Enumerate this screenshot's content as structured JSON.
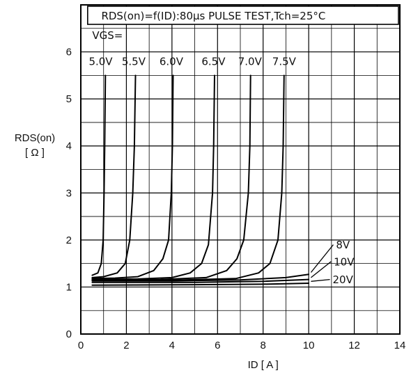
{
  "chart_data": {
    "type": "line",
    "title": "",
    "condition": "RDS(on)=f(ID):80μs PULSE TEST,Tch=25°C",
    "legend_prefix": "VGS=",
    "ylabel": "RDS(on)",
    "ylabel_unit": "[ Ω ]",
    "xlabel": "ID [ A ]",
    "xlim": [
      0,
      14
    ],
    "ylim": [
      0,
      7
    ],
    "xticks": [
      0,
      2,
      4,
      6,
      8,
      10,
      12,
      14
    ],
    "yticks": [
      0,
      1,
      2,
      3,
      4,
      5,
      6
    ],
    "grid": true,
    "series": [
      {
        "name": "5.0V",
        "points": [
          [
            0.5,
            1.25
          ],
          [
            0.75,
            1.3
          ],
          [
            0.9,
            1.5
          ],
          [
            0.98,
            2.0
          ],
          [
            1.02,
            3.0
          ],
          [
            1.05,
            4.0
          ],
          [
            1.08,
            5.5
          ]
        ]
      },
      {
        "name": "5.5V",
        "points": [
          [
            0.5,
            1.2
          ],
          [
            1.0,
            1.22
          ],
          [
            1.6,
            1.3
          ],
          [
            1.95,
            1.5
          ],
          [
            2.15,
            2.0
          ],
          [
            2.28,
            3.0
          ],
          [
            2.35,
            4.0
          ],
          [
            2.4,
            5.5
          ]
        ]
      },
      {
        "name": "6.0V",
        "points": [
          [
            0.5,
            1.18
          ],
          [
            1.5,
            1.19
          ],
          [
            2.5,
            1.22
          ],
          [
            3.2,
            1.35
          ],
          [
            3.6,
            1.6
          ],
          [
            3.85,
            2.0
          ],
          [
            3.97,
            3.0
          ],
          [
            4.02,
            4.0
          ],
          [
            4.05,
            5.5
          ]
        ]
      },
      {
        "name": "6.5V",
        "points": [
          [
            0.5,
            1.16
          ],
          [
            2.5,
            1.17
          ],
          [
            4.0,
            1.2
          ],
          [
            4.8,
            1.3
          ],
          [
            5.3,
            1.5
          ],
          [
            5.6,
            1.9
          ],
          [
            5.78,
            3.0
          ],
          [
            5.83,
            4.0
          ],
          [
            5.87,
            5.5
          ]
        ]
      },
      {
        "name": "7.0V",
        "points": [
          [
            0.5,
            1.15
          ],
          [
            3.5,
            1.16
          ],
          [
            5.5,
            1.2
          ],
          [
            6.4,
            1.35
          ],
          [
            6.85,
            1.6
          ],
          [
            7.15,
            2.0
          ],
          [
            7.35,
            3.0
          ],
          [
            7.42,
            4.0
          ],
          [
            7.45,
            5.5
          ]
        ]
      },
      {
        "name": "7.5V",
        "points": [
          [
            0.5,
            1.14
          ],
          [
            4.5,
            1.15
          ],
          [
            6.8,
            1.18
          ],
          [
            7.8,
            1.3
          ],
          [
            8.3,
            1.5
          ],
          [
            8.65,
            2.0
          ],
          [
            8.82,
            3.0
          ],
          [
            8.88,
            4.0
          ],
          [
            8.92,
            5.5
          ]
        ]
      },
      {
        "name": "8V",
        "points": [
          [
            0.5,
            1.13
          ],
          [
            4,
            1.13
          ],
          [
            7,
            1.15
          ],
          [
            9,
            1.2
          ],
          [
            10,
            1.27
          ]
        ]
      },
      {
        "name": "10V",
        "points": [
          [
            0.5,
            1.1
          ],
          [
            5,
            1.1
          ],
          [
            8,
            1.12
          ],
          [
            10,
            1.16
          ]
        ]
      },
      {
        "name": "20V",
        "points": [
          [
            0.5,
            1.04
          ],
          [
            5,
            1.05
          ],
          [
            8,
            1.06
          ],
          [
            10,
            1.08
          ]
        ]
      }
    ]
  }
}
